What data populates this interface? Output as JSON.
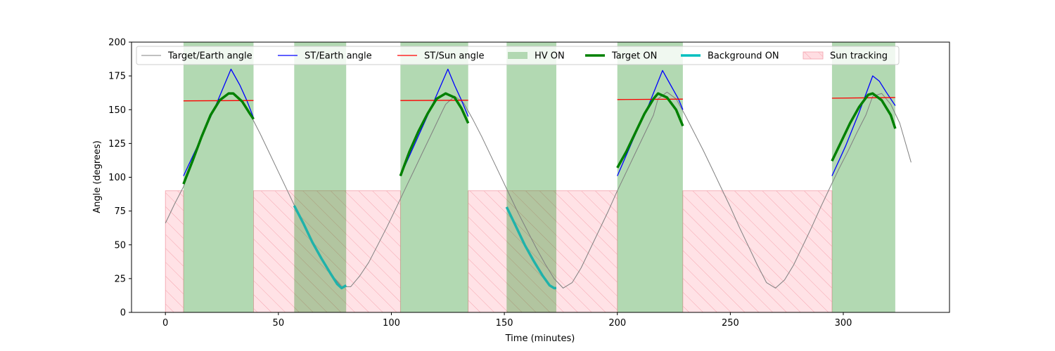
{
  "chart_data": {
    "type": "line",
    "xlabel": "Time (minutes)",
    "ylabel": "Angle (degrees)",
    "xlim": [
      -15,
      347
    ],
    "ylim": [
      0,
      200
    ],
    "xticks": [
      0,
      50,
      100,
      150,
      200,
      250,
      300
    ],
    "yticks": [
      0,
      25,
      50,
      75,
      100,
      125,
      150,
      175,
      200
    ],
    "legend_position": "top",
    "series": [
      {
        "name": "Target/Earth angle",
        "color": "#808080",
        "linewidth": 1,
        "x": [
          0,
          4,
          8,
          12,
          16,
          20,
          24,
          28,
          30,
          34,
          38,
          42,
          46,
          50,
          54,
          58,
          62,
          66,
          70,
          74,
          78,
          82,
          86,
          90,
          94,
          98,
          102,
          106,
          110,
          114,
          118,
          122,
          124,
          128,
          132,
          136,
          140,
          144,
          148,
          152,
          156,
          160,
          164,
          168,
          172,
          176,
          180,
          184,
          188,
          192,
          196,
          200,
          204,
          208,
          212,
          216,
          218,
          222,
          226,
          230,
          234,
          238,
          242,
          246,
          250,
          254,
          258,
          262,
          266,
          270,
          274,
          278,
          282,
          286,
          290,
          294,
          298,
          302,
          306,
          310,
          313,
          317,
          321,
          325,
          330
        ],
        "y": [
          66,
          80,
          93,
          112,
          130,
          146,
          157,
          162,
          162,
          156,
          145,
          132,
          118,
          104,
          90,
          76,
          63,
          50,
          37,
          27,
          19,
          19,
          27,
          37,
          50,
          63,
          77,
          91,
          105,
          119,
          133,
          147,
          154,
          160,
          155,
          143,
          130,
          116,
          102,
          88,
          74,
          61,
          48,
          36,
          25,
          18,
          22,
          33,
          47,
          61,
          75,
          90,
          104,
          118,
          132,
          146,
          158,
          163,
          158,
          146,
          133,
          120,
          106,
          92,
          78,
          63,
          49,
          35,
          22,
          18,
          24,
          35,
          49,
          63,
          78,
          92,
          106,
          119,
          133,
          146,
          160,
          162,
          154,
          140,
          111
        ]
      },
      {
        "name": "ST/Earth angle",
        "color": "#0000ff",
        "linewidth": 1.3,
        "segments": [
          {
            "x": [
              8,
              15,
              22,
              29,
              33,
              36,
              39
            ],
            "y": [
              101,
              126,
              152,
              180,
              168,
              157,
              144
            ]
          },
          {
            "x": [
              104,
              111,
              118,
              125,
              128,
              131,
              134
            ],
            "y": [
              101,
              127,
              153,
              180,
              168,
              157,
              145
            ]
          },
          {
            "x": [
              200,
              207,
              214,
              220,
              224,
              227,
              229
            ],
            "y": [
              101,
              128,
              154,
              179,
              167,
              158,
              150
            ]
          },
          {
            "x": [
              295,
              301,
              307,
              313,
              316,
              319,
              323
            ],
            "y": [
              101,
              123,
              148,
              175,
              171,
              163,
              153
            ]
          }
        ]
      },
      {
        "name": "ST/Sun angle",
        "color": "#ff0000",
        "linewidth": 1.3,
        "segments": [
          {
            "x": [
              8,
              39
            ],
            "y": [
              156.5,
              156.8
            ]
          },
          {
            "x": [
              104,
              134
            ],
            "y": [
              156.8,
              157.0
            ]
          },
          {
            "x": [
              200,
              229
            ],
            "y": [
              157.5,
              157.8
            ]
          },
          {
            "x": [
              295,
              323
            ],
            "y": [
              158.5,
              159.0
            ]
          }
        ]
      },
      {
        "name": "HV ON",
        "type": "span",
        "color": "#008000",
        "alpha": 0.3,
        "ranges": [
          [
            8,
            39
          ],
          [
            57,
            80
          ],
          [
            104,
            134
          ],
          [
            151,
            173
          ],
          [
            200,
            229
          ],
          [
            295,
            323
          ]
        ]
      },
      {
        "name": "Target ON",
        "color": "#008000",
        "linewidth": 3.5,
        "segments": [
          {
            "x": [
              8,
              12,
              16,
              20,
              24,
              28,
              30,
              34,
              37,
              39
            ],
            "y": [
              95,
              112,
              130,
              146,
              157,
              162,
              162,
              156,
              148,
              143
            ]
          },
          {
            "x": [
              104,
              108,
              112,
              116,
              120,
              124,
              128,
              131,
              134
            ],
            "y": [
              101,
              119,
              134,
              147,
              158,
              162,
              159,
              151,
              140
            ]
          },
          {
            "x": [
              200,
              204,
              208,
              212,
              216,
              218,
              222,
              226,
              229
            ],
            "y": [
              107,
              119,
              133,
              147,
              158,
              162,
              159,
              150,
              138
            ]
          },
          {
            "x": [
              295,
              299,
              303,
              307,
              311,
              313,
              317,
              321,
              323
            ],
            "y": [
              112,
              126,
              140,
              152,
              161,
              162,
              157,
              146,
              136
            ]
          }
        ]
      },
      {
        "name": "Background ON",
        "color": "#20b2aa",
        "linewidth": 3.5,
        "segments": [
          {
            "x": [
              57,
              61,
              65,
              69,
              73,
              76,
              78,
              80
            ],
            "y": [
              79,
              66,
              52,
              40,
              29,
              21,
              18,
              20
            ]
          },
          {
            "x": [
              151,
              155,
              159,
              163,
              167,
              170,
              172,
              173
            ],
            "y": [
              78,
              64,
              50,
              38,
              27,
              20,
              18,
              18
            ]
          }
        ]
      },
      {
        "name": "Sun tracking",
        "type": "span",
        "color": "#ffb6c1",
        "alpha": 0.4,
        "hatch": "/",
        "ymax": 90,
        "ranges": [
          [
            0,
            8
          ],
          [
            39,
            104
          ],
          [
            134,
            200
          ],
          [
            229,
            295
          ]
        ]
      }
    ]
  },
  "legend": [
    {
      "label": "Target/Earth angle",
      "style": "line",
      "color": "#808080",
      "width": 1
    },
    {
      "label": "ST/Earth angle",
      "style": "line",
      "color": "#0000ff",
      "width": 1.3
    },
    {
      "label": "ST/Sun angle",
      "style": "line",
      "color": "#ff0000",
      "width": 1.3
    },
    {
      "label": "HV ON",
      "style": "patch",
      "color": "#b2d8b2"
    },
    {
      "label": "Target ON",
      "style": "line",
      "color": "#008000",
      "width": 3.5
    },
    {
      "label": "Background ON",
      "style": "line",
      "color": "#00bfbf",
      "width": 3.5
    },
    {
      "label": "Sun tracking",
      "style": "hatch",
      "color": "#ffdde2"
    }
  ]
}
